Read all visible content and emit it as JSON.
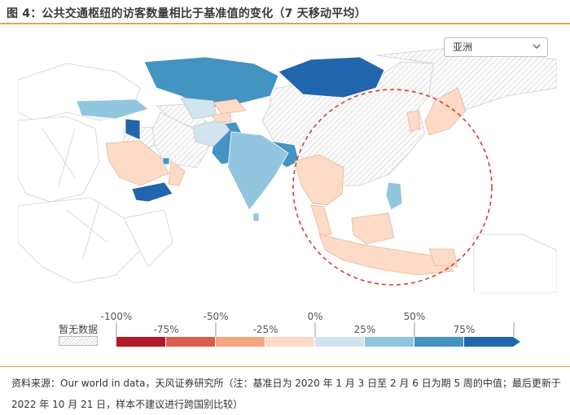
{
  "title": "图 4：公共交通枢纽的访客数量相比于基准值的变化（7 天移动平均）",
  "region_select": {
    "value": "亚洲",
    "icon": "chevron-down-icon"
  },
  "source_note": "资料来源：Our world in data，天风证券研究所（注：基准日为 2020 年 1 月 3 日至 2 月 6 日为期 5 周的中值；最后更新于 2022 年 10 月 21 日，样本不建议进行跨国别比较）",
  "legend": {
    "no_data_label": "暂无数据",
    "top_ticks": [
      "-100%",
      "-50%",
      "0%",
      "50%"
    ],
    "bottom_ticks": [
      "-75%",
      "-25%",
      "25%",
      "75%"
    ],
    "bins": [
      {
        "color": "#b2182b"
      },
      {
        "color": "#d6604d"
      },
      {
        "color": "#f4a582"
      },
      {
        "color": "#fddbc7"
      },
      {
        "color": "#d1e5f0"
      },
      {
        "color": "#92c5de"
      },
      {
        "color": "#4393c3"
      },
      {
        "color": "#2166ac"
      }
    ]
  },
  "chart_data": {
    "type": "choropleth",
    "metric": "公共交通枢纽的访客数量相比于基准值的变化（7 天移动平均）",
    "region": "亚洲",
    "scale_min": -100,
    "scale_max": 100,
    "colors": {
      "no_data": "hatched",
      "border": "#c8c8c8",
      "highlight_circle": "#d23b3b"
    }
  }
}
